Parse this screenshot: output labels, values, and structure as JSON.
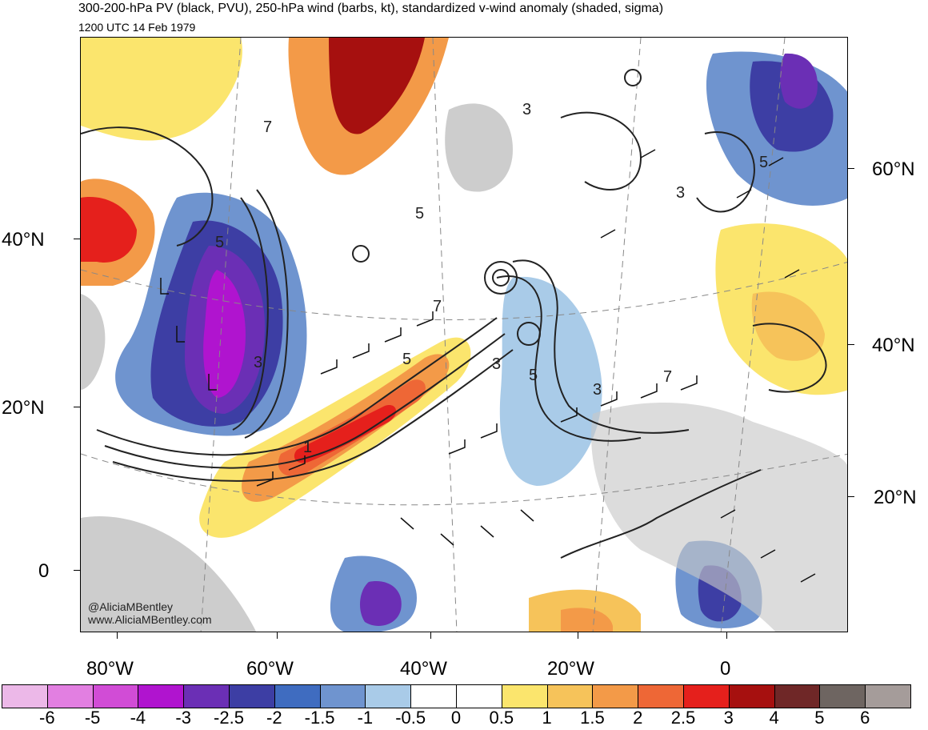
{
  "header": {
    "title": "300-200-hPa PV (black, PVU), 250-hPa wind (barbs, kt), standardized v-wind anomaly (shaded, sigma)",
    "subtitle": "1200 UTC 14 Feb 1979"
  },
  "map": {
    "left_lat_labels": [
      "40°N",
      "20°N",
      "0"
    ],
    "right_lat_labels": [
      "60°N",
      "40°N",
      "20°N"
    ],
    "lon_labels": [
      "80°W",
      "60°W",
      "40°W",
      "20°W",
      "0"
    ],
    "contour_labels": [
      "5",
      "7",
      "3",
      "5",
      "3",
      "3",
      "5",
      "5",
      "7",
      "1",
      "3",
      "5",
      "3",
      "7"
    ],
    "credit_line1": "@AliciaMBentley",
    "credit_line2": "www.AliciaMBentley.com"
  },
  "colorbar": {
    "labels": [
      "-6",
      "-5",
      "-4",
      "-3",
      "-2.5",
      "-2",
      "-1.5",
      "-1",
      "-0.5",
      "0",
      "0.5",
      "1",
      "1.5",
      "2",
      "2.5",
      "3",
      "4",
      "5",
      "6"
    ],
    "colors": [
      "#ecb8e8",
      "#e27fe1",
      "#d14cd6",
      "#b014cf",
      "#6b2fb5",
      "#3d3ea4",
      "#3f6cc0",
      "#6f94cf",
      "#a9cbe8",
      "#ffffff",
      "#ffffff",
      "#fbe56d",
      "#f6c35a",
      "#f39a48",
      "#ee6736",
      "#e5201c",
      "#a6100f",
      "#6f2727",
      "#6e6561",
      "#a59c9a"
    ]
  }
}
